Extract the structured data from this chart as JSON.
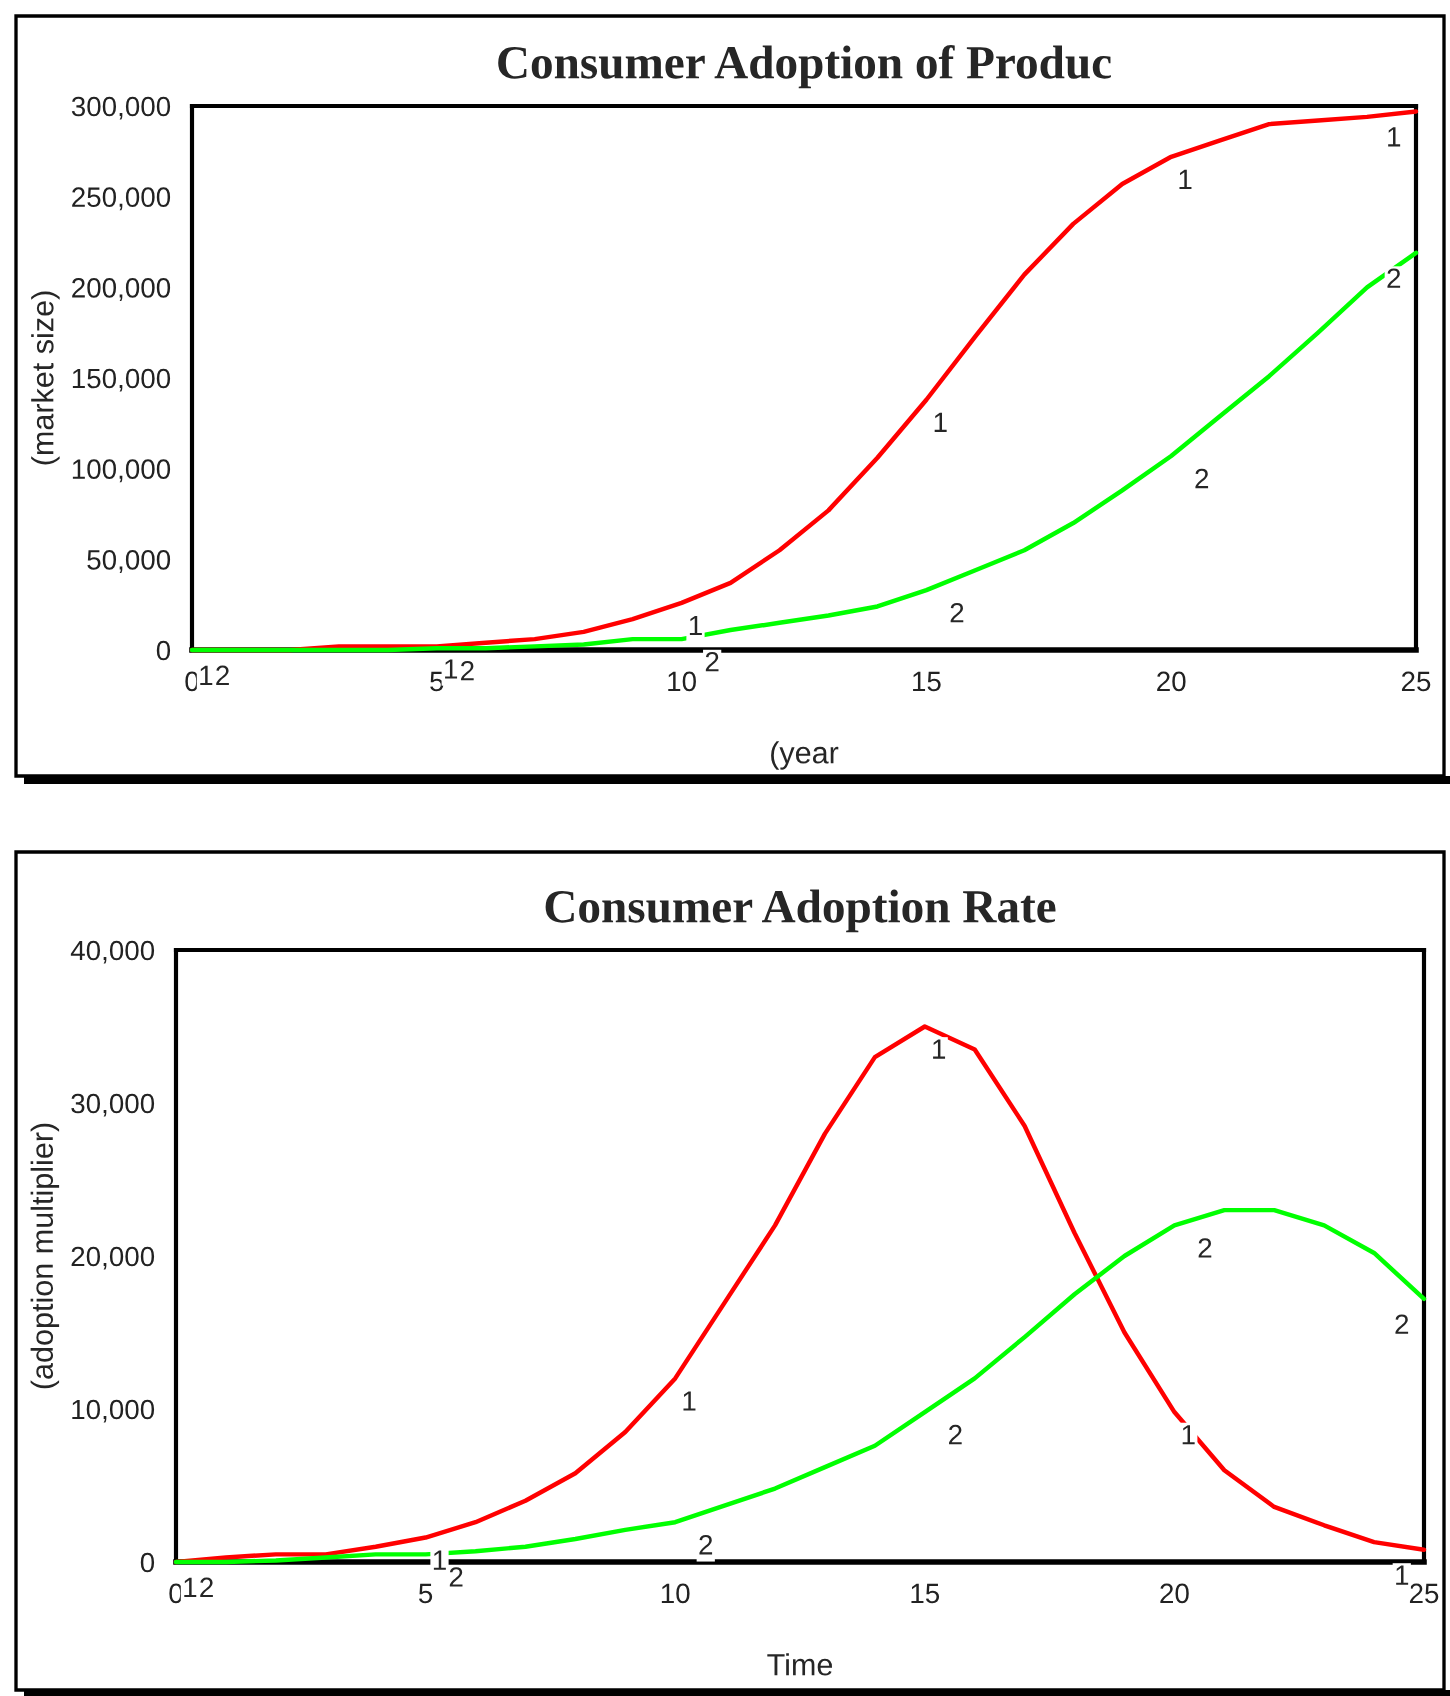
{
  "chart_data": [
    {
      "type": "line",
      "title": "Consumer Adoption of Produc",
      "xlabel": "(year",
      "ylabel": "(market size)",
      "x": [
        0,
        1,
        2,
        3,
        4,
        5,
        6,
        7,
        8,
        9,
        10,
        11,
        12,
        13,
        14,
        15,
        16,
        17,
        18,
        19,
        20,
        21,
        22,
        23,
        24,
        25
      ],
      "xlim": [
        0,
        25
      ],
      "xticks": [
        0,
        5,
        10,
        15,
        20,
        25
      ],
      "ylim": [
        0,
        300000
      ],
      "yticks": [
        {
          "value": 0,
          "label": "0"
        },
        {
          "value": 50000,
          "label": "50,000"
        },
        {
          "value": 100000,
          "label": "100,000"
        },
        {
          "value": 150000,
          "label": "150,000"
        },
        {
          "value": 200000,
          "label": "200,000"
        },
        {
          "value": 250000,
          "label": "250,000"
        },
        {
          "value": 300000,
          "label": "300,000"
        }
      ],
      "grid": false,
      "legend": false,
      "series": [
        {
          "name": "1",
          "color": "#ff0000",
          "values": [
            0,
            0,
            0,
            2000,
            2000,
            2000,
            4000,
            6000,
            10000,
            17000,
            26000,
            37000,
            55000,
            77000,
            106000,
            138000,
            173000,
            207000,
            235000,
            257000,
            272000,
            281000,
            290000,
            292000,
            294000,
            297000
          ]
        },
        {
          "name": "2",
          "color": "#00ff00",
          "values": [
            0,
            0,
            0,
            0,
            0,
            1000,
            1000,
            2000,
            3000,
            6000,
            6000,
            11000,
            15000,
            19000,
            24000,
            33000,
            44000,
            55000,
            70000,
            88000,
            107000,
            129000,
            151000,
            175000,
            200000,
            219000
          ]
        }
      ]
    },
    {
      "type": "line",
      "title": "Consumer Adoption Rate",
      "xlabel": "Time",
      "ylabel": "(adoption multiplier)",
      "x": [
        0,
        1,
        2,
        3,
        4,
        5,
        6,
        7,
        8,
        9,
        10,
        11,
        12,
        13,
        14,
        15,
        16,
        17,
        18,
        19,
        20,
        21,
        22,
        23,
        24,
        25
      ],
      "xlim": [
        0,
        25
      ],
      "xticks": [
        0,
        5,
        10,
        15,
        20,
        25
      ],
      "ylim": [
        0,
        40000
      ],
      "yticks": [
        {
          "value": 0,
          "label": "0"
        },
        {
          "value": 10000,
          "label": "10,000"
        },
        {
          "value": 20000,
          "label": "20,000"
        },
        {
          "value": 30000,
          "label": "30,000"
        },
        {
          "value": 40000,
          "label": "40,000"
        }
      ],
      "grid": false,
      "legend": false,
      "series": [
        {
          "name": "1",
          "color": "#ff0000",
          "values": [
            0,
            300,
            500,
            500,
            1000,
            1600,
            2600,
            4000,
            5800,
            8500,
            12000,
            17000,
            22000,
            28000,
            33000,
            35000,
            33500,
            28500,
            21500,
            15000,
            9800,
            6000,
            3600,
            2400,
            1300,
            800
          ]
        },
        {
          "name": "2",
          "color": "#00ff00",
          "values": [
            0,
            0,
            100,
            300,
            500,
            500,
            700,
            1000,
            1500,
            2100,
            2600,
            3700,
            4800,
            6200,
            7600,
            9800,
            12000,
            14700,
            17500,
            20000,
            22000,
            23000,
            23000,
            22000,
            20200,
            17200
          ]
        }
      ]
    }
  ]
}
